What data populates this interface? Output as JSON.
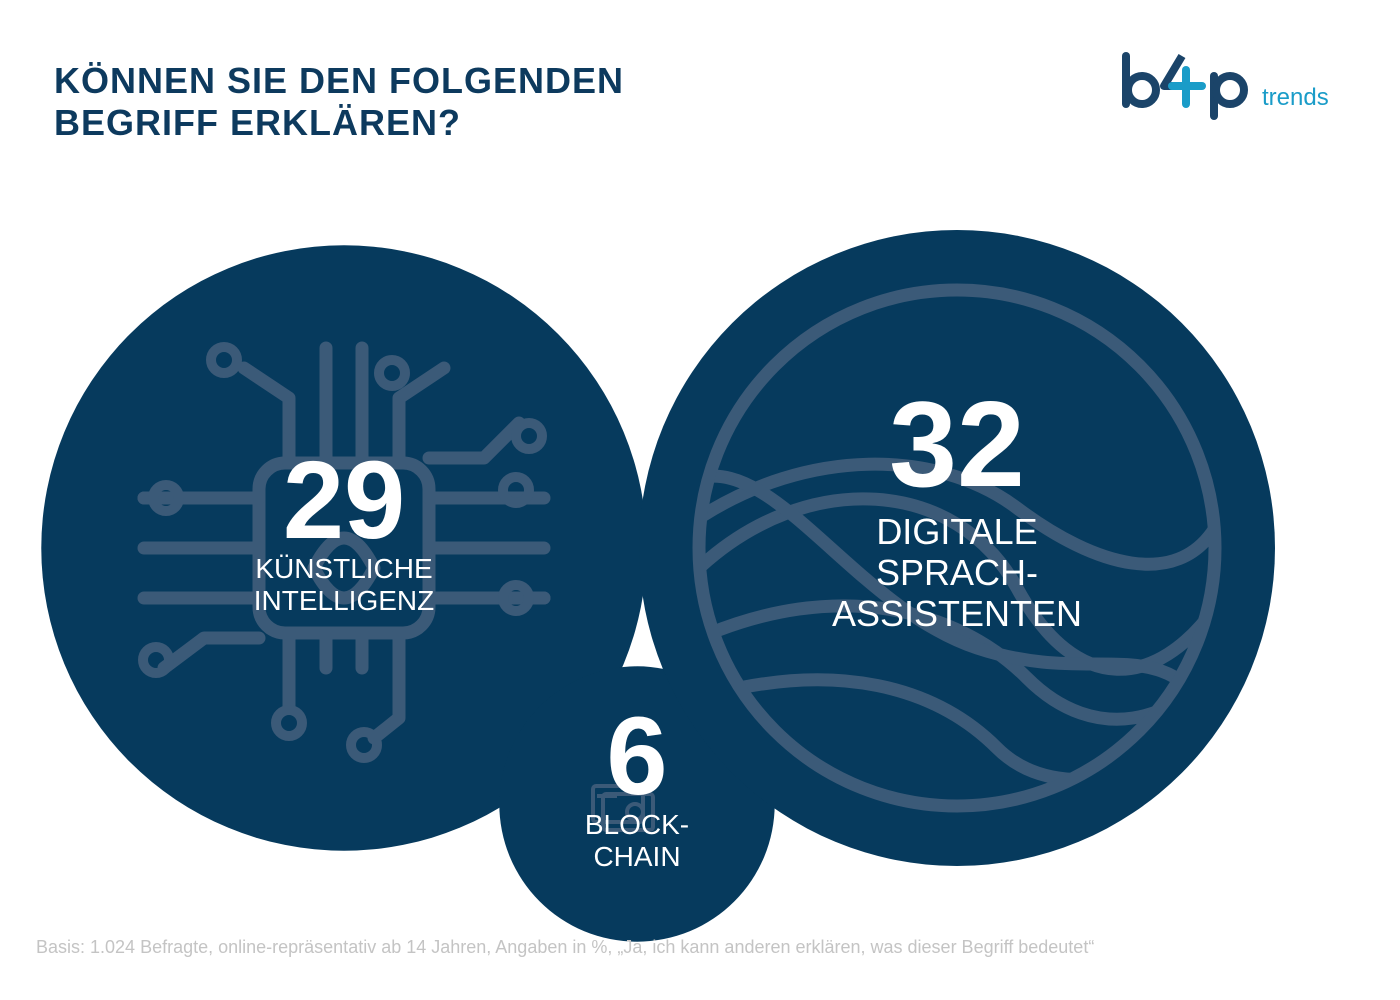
{
  "header": {
    "title_line1": "KÖNNEN SIE DEN FOLGENDEN",
    "title_line2": "BEGRIFF ERKLÄREN?"
  },
  "logo": {
    "brand": "b4p",
    "suffix": "trends",
    "colors": {
      "dark": "#1b4469",
      "accent": "#1a9cc8"
    }
  },
  "chart_data": {
    "type": "bubble",
    "unit": "%",
    "categories": [
      "KÜNSTLICHE INTELLIGENZ",
      "BLOCKCHAIN",
      "DIGITALE SPRACH-ASSISTENTEN"
    ],
    "values": [
      29,
      6,
      32
    ],
    "items": [
      {
        "value": 29,
        "value_label": "29",
        "label_lines": [
          "KÜNSTLICHE",
          "INTELLIGENZ"
        ],
        "icon": "chip-icon"
      },
      {
        "value": 6,
        "value_label": "6",
        "label_lines": [
          "BLOCK-",
          "CHAIN"
        ],
        "icon": "blockchain-icon"
      },
      {
        "value": 32,
        "value_label": "32",
        "label_lines": [
          "DIGITALE",
          "SPRACH-",
          "ASSISTENTEN"
        ],
        "icon": "soundwave-icon"
      }
    ],
    "colors": {
      "bubble": "#063a5d",
      "icon": "#3b5a78",
      "text": "#ffffff"
    },
    "legend": "none",
    "grid": false
  },
  "footnote": "Basis: 1.024 Befragte, online-repräsentativ ab 14 Jahren, Angaben in %, „Ja, ich kann anderen erklären, was dieser Begriff bedeutet“"
}
